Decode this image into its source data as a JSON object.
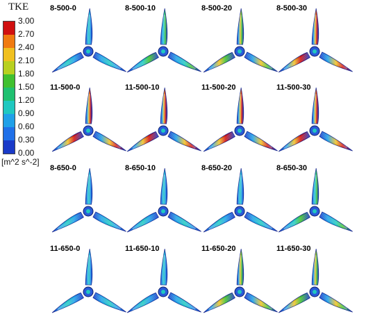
{
  "legend": {
    "title": "TKE",
    "unit": "[m^2 s^-2]",
    "ticks": [
      "3.00",
      "2.70",
      "2.40",
      "2.10",
      "1.80",
      "1.50",
      "1.20",
      "0.90",
      "0.60",
      "0.30",
      "0.00"
    ],
    "colors": [
      "#d01010",
      "#f07a10",
      "#f0c020",
      "#b8d020",
      "#40c030",
      "#20c070",
      "#20c8c0",
      "#20a0e8",
      "#2070e8",
      "#1a3ac8"
    ]
  },
  "panels": [
    {
      "label": "8-500-0",
      "intensity": 0.2
    },
    {
      "label": "8-500-10",
      "intensity": 0.45
    },
    {
      "label": "8-500-20",
      "intensity": 0.6
    },
    {
      "label": "8-500-30",
      "intensity": 0.75
    },
    {
      "label": "11-500-0",
      "intensity": 0.9
    },
    {
      "label": "11-500-10",
      "intensity": 0.8
    },
    {
      "label": "11-500-20",
      "intensity": 0.75
    },
    {
      "label": "11-500-30",
      "intensity": 0.7
    },
    {
      "label": "8-650-0",
      "intensity": 0.3
    },
    {
      "label": "8-650-10",
      "intensity": 0.25
    },
    {
      "label": "8-650-20",
      "intensity": 0.3
    },
    {
      "label": "8-650-30",
      "intensity": 0.4
    },
    {
      "label": "11-650-0",
      "intensity": 0.2
    },
    {
      "label": "11-650-10",
      "intensity": 0.35
    },
    {
      "label": "11-650-20",
      "intensity": 0.55
    },
    {
      "label": "11-650-30",
      "intensity": 0.6
    }
  ]
}
